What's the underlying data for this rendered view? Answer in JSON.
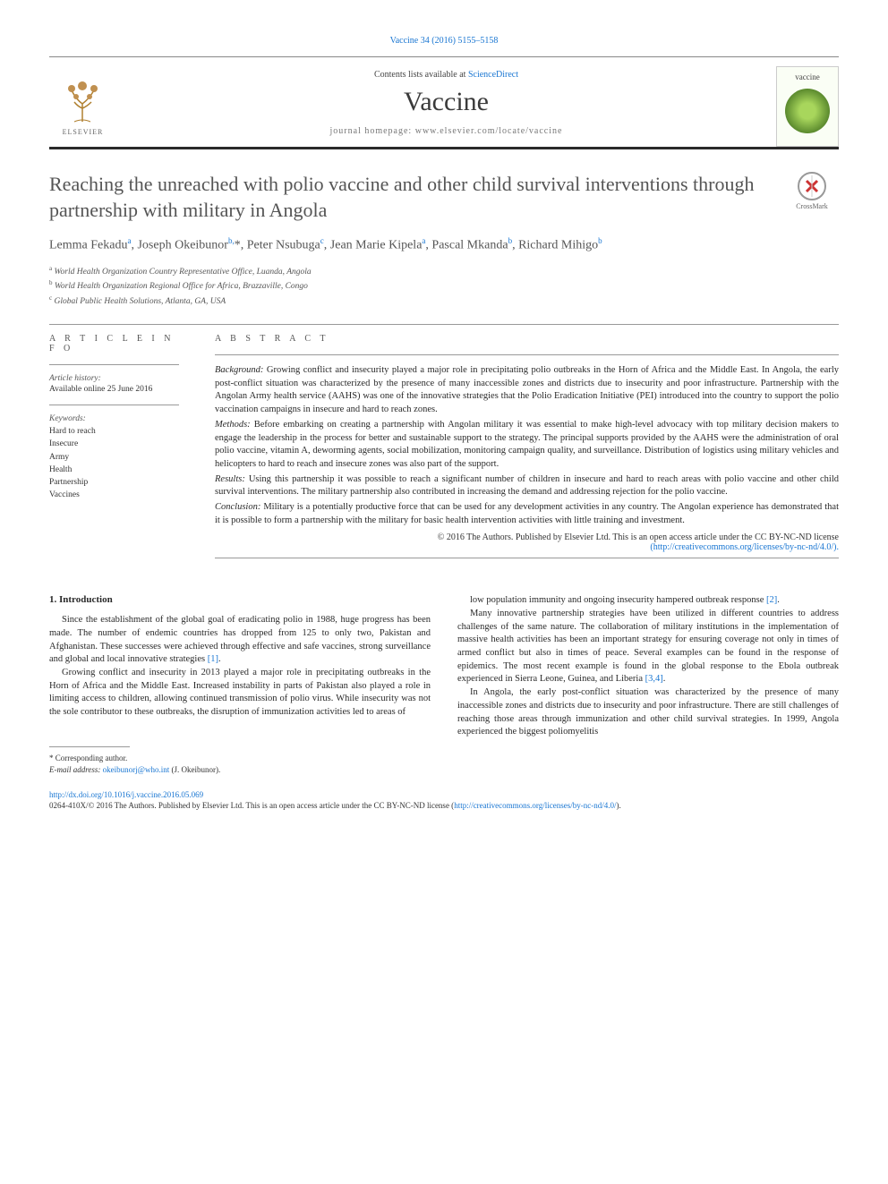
{
  "header": {
    "citation": "Vaccine 34 (2016) 5155–5158",
    "contents_prefix": "Contents lists available at ",
    "contents_link": "ScienceDirect",
    "journal": "Vaccine",
    "homepage_label": "journal homepage: ",
    "homepage": "www.elsevier.com/locate/vaccine",
    "elsevier": "ELSEVIER",
    "cover_title": "vaccine",
    "crossmark": "CrossMark"
  },
  "article": {
    "title": "Reaching the unreached with polio vaccine and other child survival interventions through partnership with military in Angola",
    "authors_html": "Lemma Fekadu<sup>a</sup>, Joseph Okeibunor<sup>b,</sup>*, Peter Nsubuga<sup>c</sup>, Jean Marie Kipela<sup>a</sup>, Pascal Mkanda<sup>b</sup>, Richard Mihigo<sup>b</sup>",
    "affiliations": [
      {
        "sup": "a",
        "text": "World Health Organization Country Representative Office, Luanda, Angola"
      },
      {
        "sup": "b",
        "text": "World Health Organization Regional Office for Africa, Brazzaville, Congo"
      },
      {
        "sup": "c",
        "text": "Global Public Health Solutions, Atlanta, GA, USA"
      }
    ]
  },
  "info": {
    "heading": "A R T I C L E   I N F O",
    "history_label": "Article history:",
    "history": "Available online 25 June 2016",
    "keywords_label": "Keywords:",
    "keywords": [
      "Hard to reach",
      "Insecure",
      "Army",
      "Health",
      "Partnership",
      "Vaccines"
    ]
  },
  "abstract": {
    "heading": "A B S T R A C T",
    "sections": [
      {
        "label": "Background:",
        "text": "Growing conflict and insecurity played a major role in precipitating polio outbreaks in the Horn of Africa and the Middle East. In Angola, the early post-conflict situation was characterized by the presence of many inaccessible zones and districts due to insecurity and poor infrastructure. Partnership with the Angolan Army health service (AAHS) was one of the innovative strategies that the Polio Eradication Initiative (PEI) introduced into the country to support the polio vaccination campaigns in insecure and hard to reach zones."
      },
      {
        "label": "Methods:",
        "text": "Before embarking on creating a partnership with Angolan military it was essential to make high-level advocacy with top military decision makers to engage the leadership in the process for better and sustainable support to the strategy. The principal supports provided by the AAHS were the administration of oral polio vaccine, vitamin A, deworming agents, social mobilization, monitoring campaign quality, and surveillance. Distribution of logistics using military vehicles and helicopters to hard to reach and insecure zones was also part of the support."
      },
      {
        "label": "Results:",
        "text": "Using this partnership it was possible to reach a significant number of children in insecure and hard to reach areas with polio vaccine and other child survival interventions. The military partnership also contributed in increasing the demand and addressing rejection for the polio vaccine."
      },
      {
        "label": "Conclusion:",
        "text": "Military is a potentially productive force that can be used for any development activities in any country. The Angolan experience has demonstrated that it is possible to form a partnership with the military for basic health intervention activities with little training and investment."
      }
    ],
    "copyright": "© 2016 The Authors. Published by Elsevier Ltd. This is an open access article under the CC BY-NC-ND license",
    "license_url": "(http://creativecommons.org/licenses/by-nc-nd/4.0/)."
  },
  "body": {
    "heading": "1. Introduction",
    "left": [
      "Since the establishment of the global goal of eradicating polio in 1988, huge progress has been made. The number of endemic countries has dropped from 125 to only two, Pakistan and Afghanistan. These successes were achieved through effective and safe vaccines, strong surveillance and global and local innovative strategies [1].",
      "Growing conflict and insecurity in 2013 played a major role in precipitating outbreaks in the Horn of Africa and the Middle East. Increased instability in parts of Pakistan also played a role in limiting access to children, allowing continued transmission of polio virus. While insecurity was not the sole contributor to these outbreaks, the disruption of immunization activities led to areas of"
    ],
    "right": [
      "low population immunity and ongoing insecurity hampered outbreak response [2].",
      "Many innovative partnership strategies have been utilized in different countries to address challenges of the same nature. The collaboration of military institutions in the implementation of massive health activities has been an important strategy for ensuring coverage not only in times of armed conflict but also in times of peace. Several examples can be found in the response of epidemics. The most recent example is found in the global response to the Ebola outbreak experienced in Sierra Leone, Guinea, and Liberia [3,4].",
      "In Angola, the early post-conflict situation was characterized by the presence of many inaccessible zones and districts due to insecurity and poor infrastructure. There are still challenges of reaching those areas through immunization and other child survival strategies. In 1999, Angola experienced the biggest poliomyelitis"
    ]
  },
  "footnote": {
    "corr": "* Corresponding author.",
    "email_label": "E-mail address: ",
    "email": "okeibunorj@who.int",
    "email_who": " (J. Okeibunor)."
  },
  "doi": {
    "url": "http://dx.doi.org/10.1016/j.vaccine.2016.05.069",
    "issn": "0264-410X/© 2016 The Authors. Published by Elsevier Ltd. This is an open access article under the CC BY-NC-ND license (",
    "license": "http://creativecommons.org/licenses/by-nc-nd/4.0/",
    "tail": ")."
  },
  "colors": {
    "link": "#1976d2",
    "text": "#2a2a2a",
    "muted": "#555555",
    "rule": "#999999"
  }
}
